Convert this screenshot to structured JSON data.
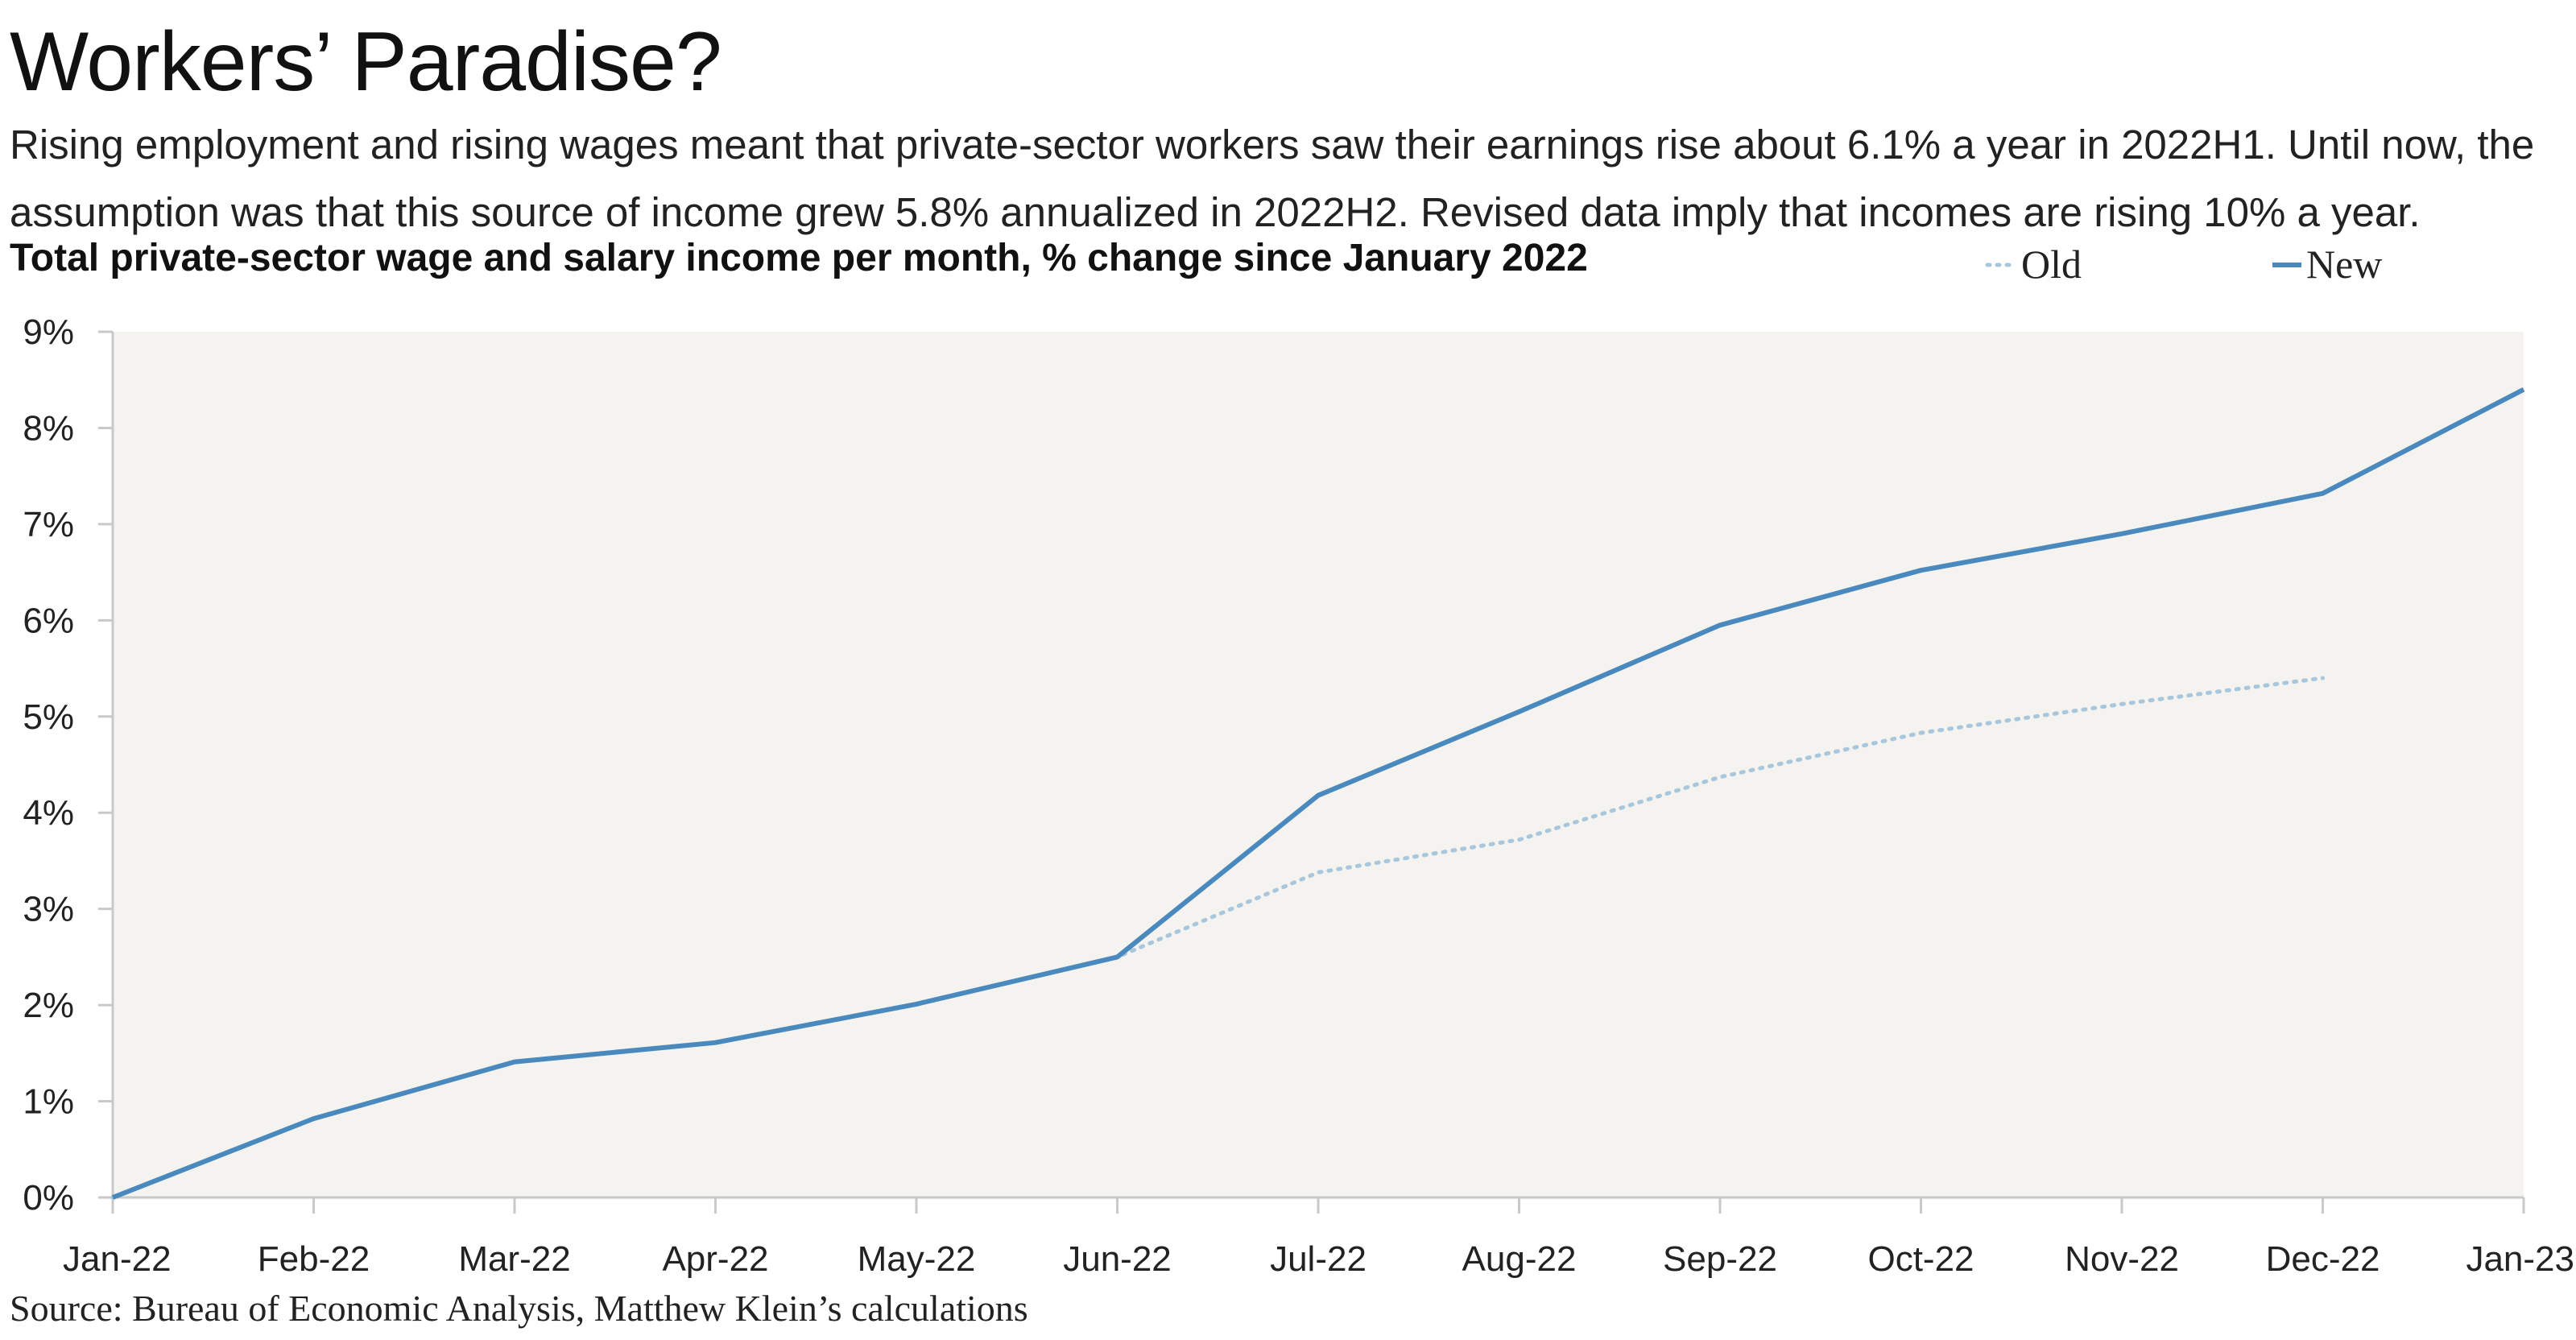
{
  "title": "Workers’ Paradise?",
  "subtitle": "Rising employment and rising wages meant that private-sector workers saw their earnings rise about 6.1% a year in 2022H1. Until now, the assumption was that this source of income grew 5.8% annualized in 2022H2. Revised data imply that incomes are rising 10% a year.",
  "source": "Source: Bureau of Economic Analysis, Matthew Klein’s calculations",
  "colors": {
    "new_line": "#4a89bd",
    "old_line": "#a9c7dc",
    "plot_bg": "#f4f3f0",
    "axis": "#c9c9c9"
  },
  "chart_data": {
    "type": "line",
    "title": "Total private-sector wage and salary income per month, % change since January 2022",
    "xlabel": "",
    "ylabel": "",
    "categories": [
      "Jan-22",
      "Feb-22",
      "Mar-22",
      "Apr-22",
      "May-22",
      "Jun-22",
      "Jul-22",
      "Aug-22",
      "Sep-22",
      "Oct-22",
      "Nov-22",
      "Dec-22",
      "Jan-23"
    ],
    "yticks": [
      "0%",
      "1%",
      "2%",
      "3%",
      "4%",
      "5%",
      "6%",
      "7%",
      "8%",
      "9%"
    ],
    "ylim": [
      0,
      9
    ],
    "grid": false,
    "legend_position": "top-right",
    "series": [
      {
        "name": "Old",
        "style": "dotted",
        "values": [
          0,
          0.82,
          1.41,
          1.61,
          2.01,
          2.5,
          3.38,
          3.72,
          4.37,
          4.83,
          5.13,
          5.4,
          null
        ]
      },
      {
        "name": "New",
        "style": "solid",
        "values": [
          0,
          0.82,
          1.41,
          1.61,
          2.01,
          2.5,
          4.18,
          5.05,
          5.95,
          6.52,
          6.9,
          7.32,
          8.4
        ]
      }
    ]
  }
}
